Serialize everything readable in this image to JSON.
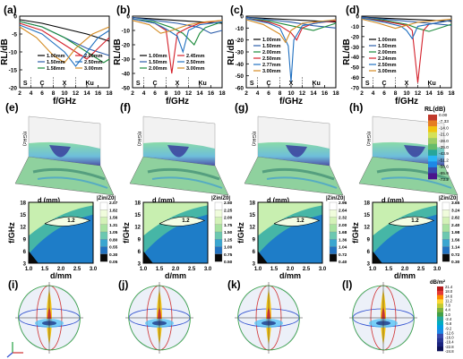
{
  "labels": {
    "row1": [
      "(a)",
      "(b)",
      "(c)",
      "(d)"
    ],
    "row2": [
      "(e)",
      "(f)",
      "(g)",
      "(h)"
    ],
    "row4": [
      "(i)",
      "(j)",
      "(k)",
      "(l)"
    ]
  },
  "chart_data": [
    {
      "id": "a",
      "type": "line",
      "xlabel": "f/GHz",
      "ylabel": "RL/dB",
      "xlim": [
        2,
        18
      ],
      "ylim": [
        -20,
        0
      ],
      "xticks": [
        "2",
        "4",
        "6",
        "8",
        "10",
        "12",
        "14",
        "16",
        "18"
      ],
      "yticks": [
        "0",
        "-5",
        "-10",
        "-15",
        "-20"
      ],
      "bands": [
        "S",
        "C",
        "X",
        "Ku"
      ],
      "series": [
        {
          "name": "1.00mm",
          "color": "#000000",
          "x": [
            2,
            6,
            10,
            14,
            18
          ],
          "y": [
            -1,
            -2,
            -3.5,
            -5,
            -7
          ]
        },
        {
          "name": "1.50mm",
          "color": "#2a5caa",
          "x": [
            2,
            6,
            10,
            14,
            18
          ],
          "y": [
            -1.5,
            -3,
            -6,
            -9,
            -11
          ]
        },
        {
          "name": "1.58mm",
          "color": "#1a8a3a",
          "x": [
            2,
            6,
            10,
            14,
            17,
            18
          ],
          "y": [
            -1.5,
            -3,
            -6,
            -10,
            -13,
            -12
          ]
        },
        {
          "name": "2.00mm",
          "color": "#d4202a",
          "x": [
            2,
            6,
            10,
            12,
            14,
            16,
            18
          ],
          "y": [
            -2,
            -4,
            -8,
            -10,
            -12,
            -9,
            -6
          ]
        },
        {
          "name": "2.50mm",
          "color": "#2070c0",
          "x": [
            2,
            6,
            10,
            12,
            14,
            16,
            18
          ],
          "y": [
            -2.5,
            -5,
            -10,
            -14,
            -10,
            -6,
            -4
          ]
        },
        {
          "name": "3.00mm",
          "color": "#d48a20",
          "x": [
            2,
            5,
            8,
            10,
            12,
            15,
            18
          ],
          "y": [
            -3,
            -6,
            -11,
            -13,
            -9,
            -5,
            -3
          ]
        }
      ]
    },
    {
      "id": "b",
      "type": "line",
      "xlabel": "f/GHz",
      "ylabel": "RL/dB",
      "xlim": [
        2,
        18
      ],
      "ylim": [
        -50,
        0
      ],
      "xticks": [
        "2",
        "4",
        "6",
        "8",
        "10",
        "12",
        "14",
        "16",
        "18"
      ],
      "yticks": [
        "0",
        "-10",
        "-20",
        "-30",
        "-40",
        "-50"
      ],
      "bands": [
        "S",
        "C",
        "X",
        "Ku"
      ],
      "series": [
        {
          "name": "1.00mm",
          "color": "#000000",
          "x": [
            2,
            6,
            10,
            14,
            18
          ],
          "y": [
            -1,
            -2,
            -3,
            -4,
            -5
          ]
        },
        {
          "name": "1.50mm",
          "color": "#2a5caa",
          "x": [
            2,
            6,
            10,
            14,
            16,
            18
          ],
          "y": [
            -1,
            -3,
            -5,
            -8,
            -12,
            -10
          ]
        },
        {
          "name": "2.00mm",
          "color": "#1a8a3a",
          "x": [
            2,
            6,
            9,
            11,
            13,
            14,
            15,
            18
          ],
          "y": [
            -2,
            -4,
            -8,
            -12,
            -20,
            -12,
            -8,
            -4
          ]
        },
        {
          "name": "2.45mm",
          "color": "#d4202a",
          "x": [
            2,
            6,
            8,
            9,
            10,
            12,
            14,
            18
          ],
          "y": [
            -2,
            -5,
            -10,
            -40,
            -12,
            -8,
            -5,
            -3
          ]
        },
        {
          "name": "2.50mm",
          "color": "#2070c0",
          "x": [
            2,
            6,
            8,
            10,
            11,
            12,
            14,
            18
          ],
          "y": [
            -2,
            -5,
            -9,
            -14,
            -25,
            -10,
            -6,
            -4
          ]
        },
        {
          "name": "3.00mm",
          "color": "#d48a20",
          "x": [
            2,
            5,
            7,
            9,
            12,
            15,
            18
          ],
          "y": [
            -3,
            -6,
            -12,
            -10,
            -6,
            -4,
            -3
          ]
        }
      ]
    },
    {
      "id": "c",
      "type": "line",
      "xlabel": "f/GHz",
      "ylabel": "RL/dB",
      "xlim": [
        2,
        18
      ],
      "ylim": [
        -60,
        0
      ],
      "xticks": [
        "2",
        "4",
        "6",
        "8",
        "10",
        "12",
        "14",
        "16",
        "18"
      ],
      "yticks": [
        "0",
        "-10",
        "-20",
        "-30",
        "-40",
        "-50",
        "-60"
      ],
      "bands": [
        "S",
        "C",
        "X",
        "Ku"
      ],
      "series": [
        {
          "name": "1.00mm",
          "color": "#000000",
          "x": [
            2,
            6,
            10,
            14,
            18
          ],
          "y": [
            -1,
            -2,
            -3,
            -4,
            -5
          ]
        },
        {
          "name": "1.50mm",
          "color": "#2a5caa",
          "x": [
            2,
            6,
            10,
            14,
            18
          ],
          "y": [
            -1,
            -3,
            -5,
            -8,
            -10
          ]
        },
        {
          "name": "2.00mm",
          "color": "#1a8a3a",
          "x": [
            2,
            6,
            10,
            14,
            16,
            18
          ],
          "y": [
            -2,
            -4,
            -8,
            -12,
            -9,
            -6
          ]
        },
        {
          "name": "2.50mm",
          "color": "#d4202a",
          "x": [
            2,
            6,
            8,
            10,
            11,
            12,
            14,
            18
          ],
          "y": [
            -2,
            -5,
            -8,
            -14,
            -20,
            -10,
            -6,
            -4
          ]
        },
        {
          "name": "2.77mm",
          "color": "#2070c0",
          "x": [
            2,
            6,
            8,
            9.5,
            10,
            10.5,
            12,
            18
          ],
          "y": [
            -2,
            -6,
            -10,
            -25,
            -55,
            -20,
            -8,
            -3
          ]
        },
        {
          "name": "3.00mm",
          "color": "#d48a20",
          "x": [
            2,
            5,
            8,
            9,
            10,
            12,
            18
          ],
          "y": [
            -3,
            -7,
            -15,
            -22,
            -12,
            -6,
            -3
          ]
        }
      ]
    },
    {
      "id": "d",
      "type": "line",
      "xlabel": "f/GHz",
      "ylabel": "RL/dB",
      "xlim": [
        2,
        18
      ],
      "ylim": [
        -70,
        0
      ],
      "xticks": [
        "2",
        "4",
        "6",
        "8",
        "10",
        "12",
        "14",
        "16",
        "18"
      ],
      "yticks": [
        "0",
        "-10",
        "-20",
        "-30",
        "-40",
        "-50",
        "-60",
        "-70"
      ],
      "bands": [
        "S",
        "C",
        "X",
        "Ku"
      ],
      "series": [
        {
          "name": "1.00mm",
          "color": "#000000",
          "x": [
            2,
            6,
            10,
            14,
            18
          ],
          "y": [
            -1,
            -2,
            -3,
            -4,
            -5
          ]
        },
        {
          "name": "1.50mm",
          "color": "#2a5caa",
          "x": [
            2,
            6,
            10,
            14,
            18
          ],
          "y": [
            -1,
            -3,
            -5,
            -7,
            -9
          ]
        },
        {
          "name": "2.00mm",
          "color": "#1a8a3a",
          "x": [
            2,
            6,
            10,
            12,
            14,
            18
          ],
          "y": [
            -2,
            -4,
            -8,
            -12,
            -15,
            -8
          ]
        },
        {
          "name": "2.24mm",
          "color": "#d4202a",
          "x": [
            2,
            6,
            10,
            11,
            12,
            13,
            14,
            18
          ],
          "y": [
            -2,
            -5,
            -9,
            -14,
            -65,
            -14,
            -8,
            -4
          ]
        },
        {
          "name": "2.50mm",
          "color": "#2070c0",
          "x": [
            2,
            6,
            9,
            10,
            11,
            12,
            18
          ],
          "y": [
            -2,
            -6,
            -10,
            -14,
            -22,
            -10,
            -4
          ]
        },
        {
          "name": "3.00mm",
          "color": "#d48a20",
          "x": [
            2,
            5,
            8,
            10,
            12,
            18
          ],
          "y": [
            -3,
            -7,
            -12,
            -9,
            -6,
            -3
          ]
        }
      ]
    },
    {
      "id": "e-h",
      "type": "heatmap",
      "zlabel": "f(GHz)",
      "xlabel": "d (mm)",
      "colorbar_title": "RL(dB)",
      "colorbar_ticks": [
        "0.00",
        "-7.33",
        "-14.0",
        "-21.0",
        "-28.0",
        "-35.0",
        "-43.9",
        "-51.2",
        "-58.6",
        "-65.9",
        "-73.2"
      ],
      "colorbar_colors": [
        "#c0392b",
        "#e67e22",
        "#f1c40f",
        "#d4e157",
        "#9ccc65",
        "#66bb6a",
        "#26a69a",
        "#29b6f6",
        "#1e88e5",
        "#3949ab",
        "#4a148c"
      ],
      "panels": [
        "e",
        "f",
        "g",
        "h"
      ]
    },
    {
      "id": "impedance",
      "type": "heatmap",
      "xlabel": "d/mm",
      "ylabel": "f/GHz",
      "colorbar_title": "|Zin/Z0|",
      "xticks": [
        "1.0",
        "1.5",
        "2.0",
        "2.5",
        "3.0"
      ],
      "yticks": [
        "3",
        "6",
        "9",
        "12",
        "15",
        "18"
      ],
      "contour_label": "1.2",
      "colorbars": [
        [
          "2.07",
          "1.82",
          "1.56",
          "1.31",
          "1.05",
          "0.80",
          "0.55",
          "0.30",
          "0.05"
        ],
        [
          "2.50",
          "2.25",
          "2.00",
          "1.75",
          "1.50",
          "1.25",
          "1.00",
          "0.75",
          "0.50"
        ],
        [
          "2.96",
          "2.64",
          "2.32",
          "2.00",
          "1.68",
          "1.36",
          "1.04",
          "0.72",
          "0.40"
        ],
        [
          "3.65",
          "3.24",
          "2.82",
          "2.40",
          "1.98",
          "1.56",
          "1.14",
          "0.72",
          "0.30"
        ]
      ]
    },
    {
      "id": "i-l",
      "type": "other",
      "colorbar_title": "dB/m²",
      "colorbar_ticks": [
        "21.4",
        "18.0",
        "14.6",
        "11.2",
        "7.8",
        "4.4",
        "1.0",
        "-2.4",
        "-5.8",
        "-9.2",
        "-12.6",
        "-16.0",
        "-19.4",
        "-22.8",
        "-24.8"
      ],
      "colorbar_colors": [
        "#b71c1c",
        "#e53935",
        "#fb8c00",
        "#fdd835",
        "#c0ca33",
        "#7cb342",
        "#43a047",
        "#26a69a",
        "#00acc1",
        "#039be5",
        "#1e88e5",
        "#3949ab",
        "#283593",
        "#1a237e",
        "#0d1257"
      ],
      "panels": [
        "i",
        "j",
        "k",
        "l"
      ]
    }
  ]
}
